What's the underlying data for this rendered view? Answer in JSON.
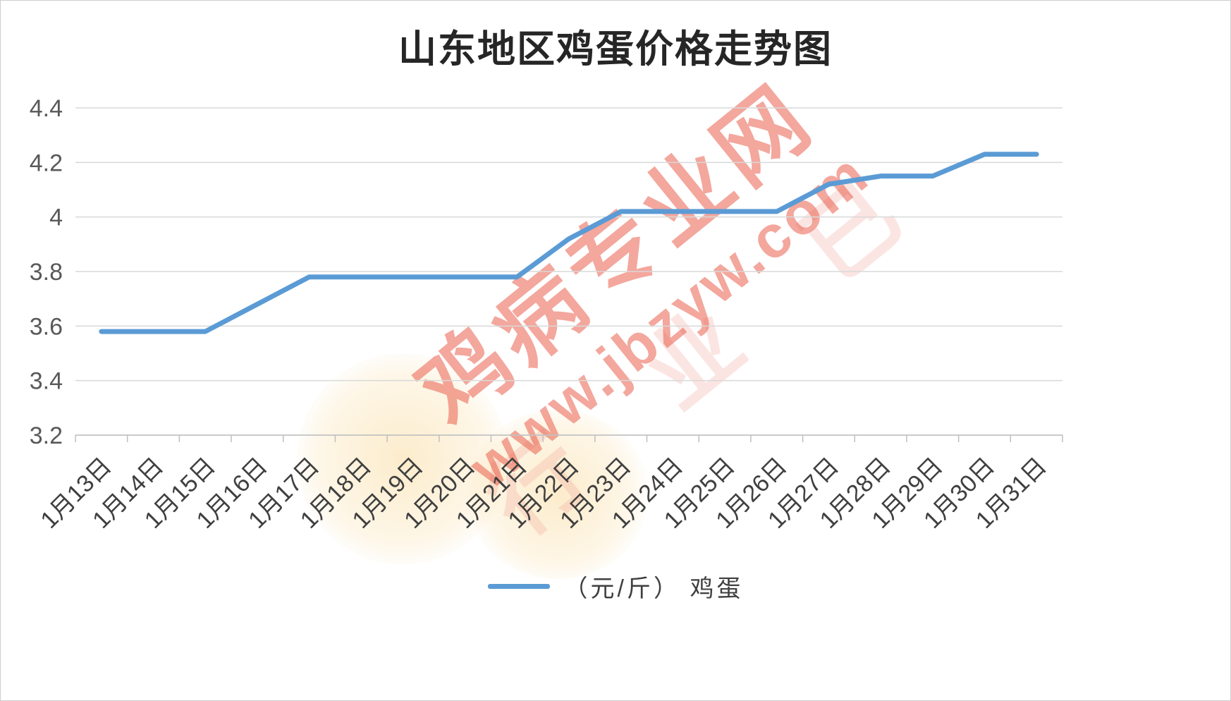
{
  "chart_data": {
    "type": "line",
    "title": "山东地区鸡蛋价格走势图",
    "categories": [
      "1月13日",
      "1月14日",
      "1月15日",
      "1月16日",
      "1月17日",
      "1月18日",
      "1月19日",
      "1月20日",
      "1月21日",
      "1月22日",
      "1月23日",
      "1月24日",
      "1月25日",
      "1月26日",
      "1月27日",
      "1月28日",
      "1月29日",
      "1月30日",
      "1月31日"
    ],
    "series": [
      {
        "name": "（元/斤） 鸡蛋",
        "color": "#5B9BD5",
        "values": [
          3.58,
          3.58,
          3.58,
          3.68,
          3.78,
          3.78,
          3.78,
          3.78,
          3.78,
          3.92,
          4.02,
          4.02,
          4.02,
          4.02,
          4.12,
          4.15,
          4.15,
          4.23,
          4.23
        ]
      }
    ],
    "ylim": [
      3.2,
      4.4
    ],
    "yticks": [
      3.2,
      3.4,
      3.6,
      3.8,
      4,
      4.2,
      4.4
    ],
    "ylabel": "",
    "xlabel": "",
    "grid": "horizontal",
    "legend_position": "bottom",
    "gridline_color": "#d9d9d9",
    "axis_color": "#bfbfbf",
    "ytick_color": "#595959",
    "xtick_color": "#3f3f3f"
  },
  "watermark": {
    "brand": "鸡病专业网",
    "url": "www.jbzyw.com",
    "faint": "行 业 已"
  }
}
